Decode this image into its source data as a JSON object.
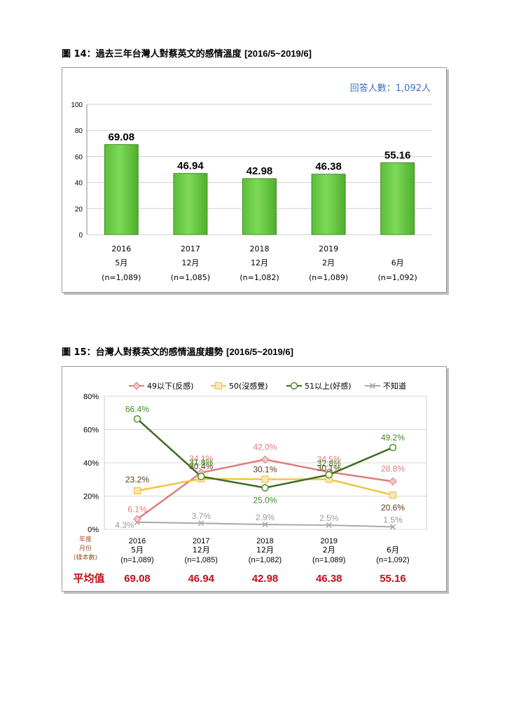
{
  "figure14": {
    "label": "圖 14：",
    "title": "過去三年台灣人對蔡英文的感情溫度",
    "range": "[2016/5~2019/6]",
    "respondents": "回答人數：1,092人"
  },
  "figure15": {
    "label": "圖 15：",
    "title": "台灣人對蔡英文的感情溫度趨勢",
    "range": "[2016/5~2019/6]",
    "row_labels": [
      "年度",
      "月份",
      "(樣本數)"
    ],
    "avg_label": "平均值"
  },
  "chart_data": [
    {
      "type": "bar",
      "categories": [
        {
          "year": "2016",
          "month": "5月",
          "n": "(n=1,089)"
        },
        {
          "year": "2017",
          "month": "12月",
          "n": "(n=1,085)"
        },
        {
          "year": "2018",
          "month": "12月",
          "n": "(n=1,082)"
        },
        {
          "year": "2019",
          "month": "2月",
          "n": "(n=1,089)"
        },
        {
          "year": "",
          "month": "6月",
          "n": "(n=1,092)"
        }
      ],
      "values": [
        69.08,
        46.94,
        42.98,
        46.38,
        55.16
      ],
      "value_labels": [
        "69.08",
        "46.94",
        "42.98",
        "46.38",
        "55.16"
      ],
      "yticks": [
        "0",
        "20",
        "40",
        "60",
        "80",
        "100"
      ],
      "ylim": [
        0,
        100
      ],
      "grid": true,
      "bar_color": "#7ed957"
    },
    {
      "type": "line",
      "categories": [
        {
          "year": "2016",
          "month": "5月",
          "n": "(n=1,089)"
        },
        {
          "year": "2017",
          "month": "12月",
          "n": "(n=1,085)"
        },
        {
          "year": "2018",
          "month": "12月",
          "n": "(n=1,082)"
        },
        {
          "year": "2019",
          "month": "2月",
          "n": "(n=1,089)"
        },
        {
          "year": "",
          "month": "6月",
          "n": "(n=1,092)"
        }
      ],
      "yticks": [
        "0%",
        "20%",
        "40%",
        "60%",
        "80%"
      ],
      "ylim": [
        0,
        80
      ],
      "grid": true,
      "legend_position": "top",
      "series": [
        {
          "name": "49以下(反感)",
          "values": [
            6.1,
            34.1,
            42.0,
            34.5,
            28.8
          ],
          "labels": [
            "6.1%",
            "34.1%",
            "42.0%",
            "34.5%",
            "28.8%"
          ],
          "color": "#e07b7b",
          "marker": "diamond"
        },
        {
          "name": "50(沒感覺)",
          "values": [
            23.2,
            30.4,
            30.1,
            30.1,
            20.6
          ],
          "labels": [
            "23.2%",
            "30.4%",
            "30.1%",
            "30.1%",
            "20.6%"
          ],
          "color": "#f5c242",
          "marker": "square",
          "label_color": "#5a3a1a"
        },
        {
          "name": "51以上(好感)",
          "values": [
            66.4,
            31.8,
            25.0,
            32.8,
            49.2
          ],
          "labels": [
            "66.4%",
            "31.8%",
            "25.0%",
            "32.8%",
            "49.2%"
          ],
          "color": "#3d6b1f",
          "marker": "circle",
          "label_color": "#3f8a1f"
        },
        {
          "name": "不知道",
          "values": [
            4.3,
            3.7,
            2.9,
            2.5,
            1.5
          ],
          "labels": [
            "4.3%",
            "3.7%",
            "2.9%",
            "2.5%",
            "1.5%"
          ],
          "color": "#a8a8a8",
          "marker": "x"
        }
      ],
      "averages": [
        "69.08",
        "46.94",
        "42.98",
        "46.38",
        "55.16"
      ]
    }
  ]
}
